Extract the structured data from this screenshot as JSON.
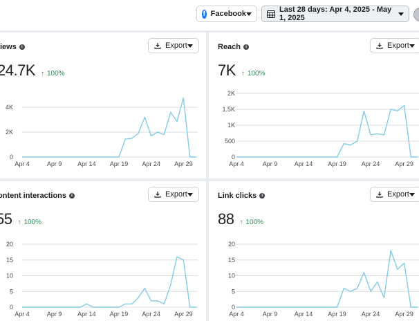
{
  "header": {
    "platform": "Facebook",
    "date_range": "Last 28 days: Apr 4, 2025 - May 1, 2025"
  },
  "export_label": "Export",
  "change_arrow": "↑",
  "cards": [
    {
      "title": "iews",
      "value": "24.7K",
      "change": "100%",
      "chart_data": {
        "type": "line",
        "ylim": [
          0,
          5000
        ],
        "yticks": [
          0,
          2000,
          4000
        ],
        "ytick_labels": [
          "0",
          "2K",
          "4K"
        ],
        "xtick_labels": [
          "Apr 4",
          "Apr 9",
          "Apr 14",
          "Apr 19",
          "Apr 24",
          "Apr 29"
        ],
        "xtick_index": [
          0,
          5,
          10,
          15,
          20,
          25
        ],
        "series": [
          {
            "color": "#84cbe8",
            "values": [
              0,
              0,
              0,
              0,
              0,
              0,
              0,
              0,
              0,
              0,
              0,
              0,
              0,
              0,
              0,
              0,
              1450,
              1500,
              1900,
              3200,
              1700,
              2000,
              1800,
              3600,
              2850,
              4750,
              0,
              0
            ]
          }
        ]
      }
    },
    {
      "title": "Reach",
      "value": "7K",
      "change": "100%",
      "chart_data": {
        "type": "line",
        "ylim": [
          0,
          2000
        ],
        "yticks": [
          0,
          500,
          1000,
          1500,
          2000
        ],
        "ytick_labels": [
          "0",
          "500",
          "1K",
          "1.5K",
          "2K"
        ],
        "xtick_labels": [
          "Apr 4",
          "Apr 9",
          "Apr 14",
          "Apr 19",
          "Apr 24",
          "Apr 29"
        ],
        "xtick_index": [
          0,
          5,
          10,
          15,
          20,
          25
        ],
        "series": [
          {
            "color": "#84cbe8",
            "values": [
              0,
              0,
              0,
              0,
              0,
              0,
              0,
              0,
              0,
              0,
              0,
              0,
              0,
              0,
              0,
              0,
              420,
              380,
              500,
              1450,
              700,
              730,
              700,
              1500,
              1450,
              1620,
              0,
              0
            ]
          }
        ]
      }
    },
    {
      "title": "ontent interactions",
      "value": "55",
      "change": "100%",
      "chart_data": {
        "type": "line",
        "ylim": [
          0,
          20
        ],
        "yticks": [
          0,
          5,
          10,
          15,
          20
        ],
        "ytick_labels": [
          "0",
          "5",
          "10",
          "15",
          "20"
        ],
        "xtick_labels": [
          "Apr 4",
          "Apr 9",
          "Apr 14",
          "Apr 19",
          "Apr 24",
          "Apr 29"
        ],
        "xtick_index": [
          0,
          5,
          10,
          15,
          20,
          25
        ],
        "series": [
          {
            "color": "#84cbe8",
            "values": [
              0,
              0,
              0,
              0,
              0,
              0,
              0,
              0,
              0,
              0,
              1,
              0,
              0,
              0,
              0,
              0,
              1,
              1,
              3,
              6,
              2,
              2,
              1,
              7,
              16,
              15,
              0,
              0
            ]
          }
        ]
      }
    },
    {
      "title": "Link clicks",
      "value": "88",
      "change": "100%",
      "chart_data": {
        "type": "line",
        "ylim": [
          0,
          20
        ],
        "yticks": [
          0,
          5,
          10,
          15,
          20
        ],
        "ytick_labels": [
          "0",
          "5",
          "10",
          "15",
          "20"
        ],
        "xtick_labels": [
          "Apr 4",
          "Apr 9",
          "Apr 14",
          "Apr 19",
          "Apr 24",
          "Apr 29"
        ],
        "xtick_index": [
          0,
          5,
          10,
          15,
          20,
          25
        ],
        "series": [
          {
            "color": "#84cbe8",
            "values": [
              0,
              0,
              0,
              0,
              0,
              0,
              0,
              0,
              0,
              0,
              0,
              0,
              0,
              0,
              0,
              0,
              6,
              5,
              6,
              11,
              5,
              8,
              3,
              18,
              12,
              14,
              0,
              0
            ]
          }
        ]
      }
    }
  ],
  "colors": {
    "accent": "#1877f2",
    "positive": "#2e8b57",
    "line": "#84cbe8"
  },
  "icons": {
    "platform": "facebook-icon",
    "date": "calendar-icon",
    "export": "download-icon",
    "info": "info-icon",
    "dropdown": "caret-down-icon"
  }
}
